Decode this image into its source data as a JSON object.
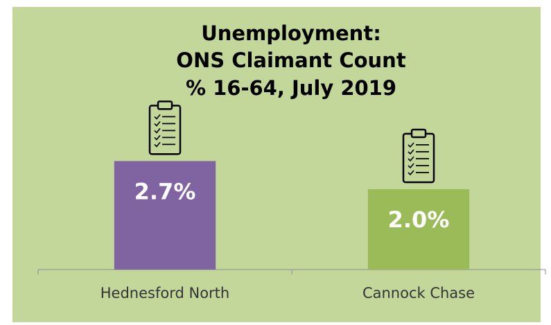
{
  "chart_data": {
    "type": "bar",
    "title": [
      "Unemployment:",
      "ONS Claimant Count",
      "% 16-64, July 2019"
    ],
    "categories": [
      "Hednesford North",
      "Cannock Chase"
    ],
    "values": [
      2.7,
      2.0
    ],
    "value_labels": [
      "2.7%",
      "2.0%"
    ],
    "colors": [
      "#8064a2",
      "#9bbb59"
    ]
  }
}
